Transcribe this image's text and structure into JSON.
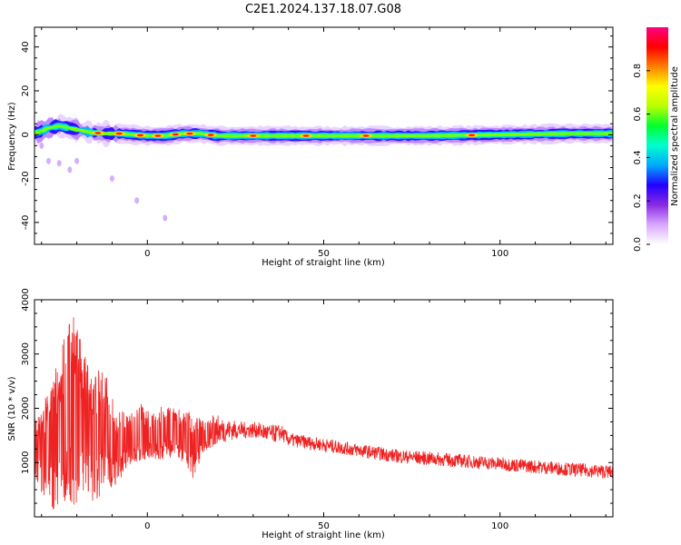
{
  "chart_data": [
    {
      "type": "heatmap",
      "title": "C2E1.2024.137.18.07.G08",
      "xlabel": "Height of straight line (km)",
      "ylabel": "Frequency (Hz)",
      "xlim": [
        -32,
        132
      ],
      "ylim": [
        -50,
        49
      ],
      "xticks": [
        0,
        50,
        100
      ],
      "yticks": [
        40,
        20,
        0,
        -20,
        -40
      ],
      "colorbar": {
        "label": "Normalized spectral amplitude",
        "range": [
          0,
          1
        ],
        "ticks": [
          "0.0",
          "0.2",
          "0.4",
          "0.6",
          "0.8"
        ],
        "colormap": [
          "#ffffff",
          "#d9a8ff",
          "#8a2be2",
          "#2200ff",
          "#00a8ff",
          "#00ffd0",
          "#00ff30",
          "#b8ff00",
          "#ffff00",
          "#ff8000",
          "#ff0000",
          "#ff0080"
        ]
      },
      "band": {
        "center_hz": [
          [
            -31,
            1
          ],
          [
            -28,
            3
          ],
          [
            -25,
            4
          ],
          [
            -22,
            3
          ],
          [
            -19,
            2
          ],
          [
            -16,
            1
          ],
          [
            -12,
            0.5
          ],
          [
            -8,
            0.5
          ],
          [
            -4,
            0
          ],
          [
            0,
            -0.5
          ],
          [
            5,
            -0.5
          ],
          [
            10,
            0.5
          ],
          [
            15,
            0.5
          ],
          [
            20,
            -0.5
          ],
          [
            40,
            -0.5
          ],
          [
            60,
            -0.5
          ],
          [
            80,
            -0.5
          ],
          [
            100,
            0
          ],
          [
            120,
            0.5
          ],
          [
            132,
            0.5
          ]
        ],
        "hot_spots_km": [
          -14,
          -8,
          -2,
          3,
          8,
          12,
          18,
          30,
          45,
          62,
          92
        ]
      },
      "scatter_blobs": [
        [
          -28,
          -12
        ],
        [
          -25,
          -13
        ],
        [
          -22,
          -16
        ],
        [
          -30,
          -5
        ],
        [
          -20,
          -12
        ],
        [
          -10,
          -20
        ],
        [
          -3,
          -30
        ],
        [
          5,
          -38
        ]
      ]
    },
    {
      "type": "line",
      "xlabel": "Height of straight line (km)",
      "ylabel": "SNR (10 * v/v)",
      "xlim": [
        -32,
        132
      ],
      "ylim": [
        0,
        4000
      ],
      "xticks": [
        0,
        50,
        100
      ],
      "yticks": [
        1000,
        2000,
        3000,
        4000
      ],
      "color": "#ee2222",
      "envelope": [
        [
          -32,
          700,
          1900
        ],
        [
          -28,
          150,
          2300
        ],
        [
          -24,
          100,
          3200
        ],
        [
          -21,
          100,
          3950
        ],
        [
          -18,
          200,
          3000
        ],
        [
          -15,
          300,
          2600
        ],
        [
          -12,
          400,
          2900
        ],
        [
          -9,
          600,
          2000
        ],
        [
          -5,
          900,
          1900
        ],
        [
          -2,
          1000,
          2100
        ],
        [
          1,
          1100,
          1900
        ],
        [
          4,
          1000,
          2100
        ],
        [
          7,
          1100,
          2000
        ],
        [
          10,
          1000,
          2000
        ],
        [
          13,
          700,
          1900
        ],
        [
          16,
          1200,
          1800
        ],
        [
          19,
          1300,
          1900
        ],
        [
          23,
          1400,
          1800
        ],
        [
          27,
          1450,
          1750
        ],
        [
          31,
          1450,
          1750
        ],
        [
          35,
          1350,
          1700
        ],
        [
          38,
          1400,
          1700
        ],
        [
          40,
          1300,
          1550
        ],
        [
          45,
          1250,
          1500
        ],
        [
          50,
          1200,
          1450
        ],
        [
          60,
          1100,
          1350
        ],
        [
          70,
          1000,
          1250
        ],
        [
          80,
          950,
          1200
        ],
        [
          90,
          900,
          1150
        ],
        [
          100,
          850,
          1100
        ],
        [
          110,
          800,
          1050
        ],
        [
          120,
          750,
          1000
        ],
        [
          132,
          700,
          950
        ]
      ]
    }
  ]
}
